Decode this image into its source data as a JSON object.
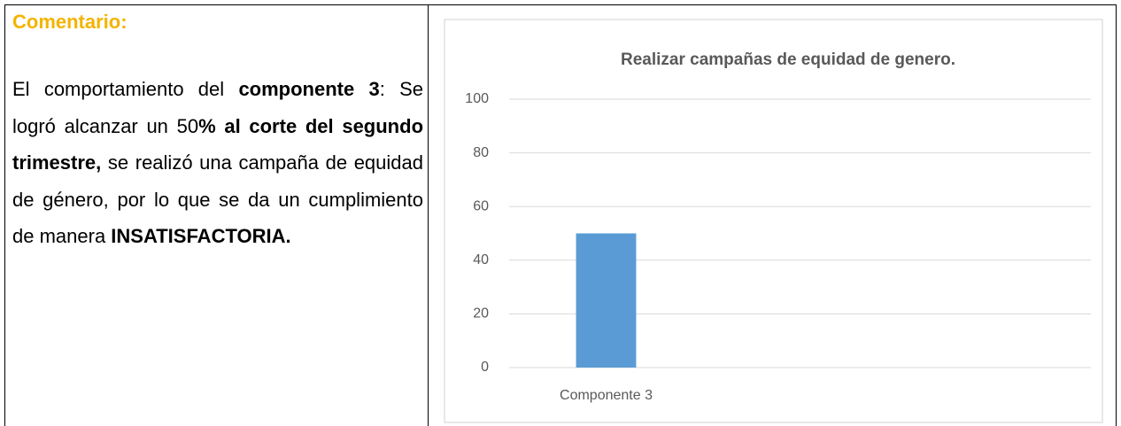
{
  "comment": {
    "title": "Comentario:",
    "segments": [
      {
        "text": "El comportamiento del ",
        "bold": false
      },
      {
        "text": "componente 3",
        "bold": true
      },
      {
        "text": ": Se logró alcanzar un 50",
        "bold": false
      },
      {
        "text": "% al corte del segundo trimestre,",
        "bold": true
      },
      {
        "text": " se realizó una campaña de equidad de género, por lo que se da un cumplimiento de manera ",
        "bold": false
      },
      {
        "text": "INSATISFACTORIA.",
        "bold": true
      }
    ]
  },
  "chart": {
    "type": "bar",
    "title": "Realizar campañas de equidad de genero.",
    "categories": [
      "Componente 3",
      null,
      null
    ],
    "values": [
      50,
      null,
      null
    ],
    "color": "#5b9bd5",
    "ylim": [
      0,
      100
    ],
    "yticks": [
      0,
      20,
      40,
      60,
      80,
      100
    ],
    "grid": true
  }
}
